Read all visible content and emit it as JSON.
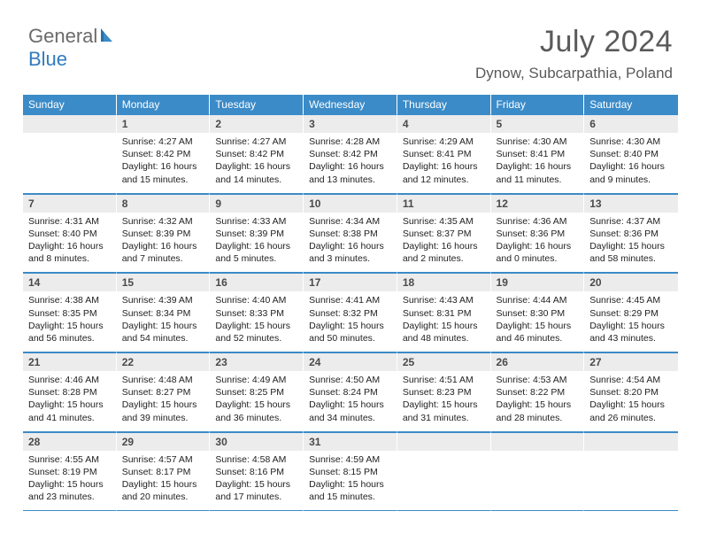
{
  "logo": {
    "t1": "General",
    "t2": "Blue"
  },
  "title": "July 2024",
  "location": "Dynow, Subcarpathia, Poland",
  "colors": {
    "header_blue": "#3b8bc8",
    "num_bg": "#ececec",
    "text_gray": "#5a5a5a"
  },
  "daynames": [
    "Sunday",
    "Monday",
    "Tuesday",
    "Wednesday",
    "Thursday",
    "Friday",
    "Saturday"
  ],
  "weeks": [
    {
      "nums": [
        "",
        "1",
        "2",
        "3",
        "4",
        "5",
        "6"
      ],
      "cells": [
        null,
        {
          "rise": "4:27 AM",
          "set": "8:42 PM",
          "day": "16 hours and 15 minutes."
        },
        {
          "rise": "4:27 AM",
          "set": "8:42 PM",
          "day": "16 hours and 14 minutes."
        },
        {
          "rise": "4:28 AM",
          "set": "8:42 PM",
          "day": "16 hours and 13 minutes."
        },
        {
          "rise": "4:29 AM",
          "set": "8:41 PM",
          "day": "16 hours and 12 minutes."
        },
        {
          "rise": "4:30 AM",
          "set": "8:41 PM",
          "day": "16 hours and 11 minutes."
        },
        {
          "rise": "4:30 AM",
          "set": "8:40 PM",
          "day": "16 hours and 9 minutes."
        }
      ]
    },
    {
      "nums": [
        "7",
        "8",
        "9",
        "10",
        "11",
        "12",
        "13"
      ],
      "cells": [
        {
          "rise": "4:31 AM",
          "set": "8:40 PM",
          "day": "16 hours and 8 minutes."
        },
        {
          "rise": "4:32 AM",
          "set": "8:39 PM",
          "day": "16 hours and 7 minutes."
        },
        {
          "rise": "4:33 AM",
          "set": "8:39 PM",
          "day": "16 hours and 5 minutes."
        },
        {
          "rise": "4:34 AM",
          "set": "8:38 PM",
          "day": "16 hours and 3 minutes."
        },
        {
          "rise": "4:35 AM",
          "set": "8:37 PM",
          "day": "16 hours and 2 minutes."
        },
        {
          "rise": "4:36 AM",
          "set": "8:36 PM",
          "day": "16 hours and 0 minutes."
        },
        {
          "rise": "4:37 AM",
          "set": "8:36 PM",
          "day": "15 hours and 58 minutes."
        }
      ]
    },
    {
      "nums": [
        "14",
        "15",
        "16",
        "17",
        "18",
        "19",
        "20"
      ],
      "cells": [
        {
          "rise": "4:38 AM",
          "set": "8:35 PM",
          "day": "15 hours and 56 minutes."
        },
        {
          "rise": "4:39 AM",
          "set": "8:34 PM",
          "day": "15 hours and 54 minutes."
        },
        {
          "rise": "4:40 AM",
          "set": "8:33 PM",
          "day": "15 hours and 52 minutes."
        },
        {
          "rise": "4:41 AM",
          "set": "8:32 PM",
          "day": "15 hours and 50 minutes."
        },
        {
          "rise": "4:43 AM",
          "set": "8:31 PM",
          "day": "15 hours and 48 minutes."
        },
        {
          "rise": "4:44 AM",
          "set": "8:30 PM",
          "day": "15 hours and 46 minutes."
        },
        {
          "rise": "4:45 AM",
          "set": "8:29 PM",
          "day": "15 hours and 43 minutes."
        }
      ]
    },
    {
      "nums": [
        "21",
        "22",
        "23",
        "24",
        "25",
        "26",
        "27"
      ],
      "cells": [
        {
          "rise": "4:46 AM",
          "set": "8:28 PM",
          "day": "15 hours and 41 minutes."
        },
        {
          "rise": "4:48 AM",
          "set": "8:27 PM",
          "day": "15 hours and 39 minutes."
        },
        {
          "rise": "4:49 AM",
          "set": "8:25 PM",
          "day": "15 hours and 36 minutes."
        },
        {
          "rise": "4:50 AM",
          "set": "8:24 PM",
          "day": "15 hours and 34 minutes."
        },
        {
          "rise": "4:51 AM",
          "set": "8:23 PM",
          "day": "15 hours and 31 minutes."
        },
        {
          "rise": "4:53 AM",
          "set": "8:22 PM",
          "day": "15 hours and 28 minutes."
        },
        {
          "rise": "4:54 AM",
          "set": "8:20 PM",
          "day": "15 hours and 26 minutes."
        }
      ]
    },
    {
      "nums": [
        "28",
        "29",
        "30",
        "31",
        "",
        "",
        ""
      ],
      "cells": [
        {
          "rise": "4:55 AM",
          "set": "8:19 PM",
          "day": "15 hours and 23 minutes."
        },
        {
          "rise": "4:57 AM",
          "set": "8:17 PM",
          "day": "15 hours and 20 minutes."
        },
        {
          "rise": "4:58 AM",
          "set": "8:16 PM",
          "day": "15 hours and 17 minutes."
        },
        {
          "rise": "4:59 AM",
          "set": "8:15 PM",
          "day": "15 hours and 15 minutes."
        },
        null,
        null,
        null
      ]
    }
  ],
  "labels": {
    "sunrise": "Sunrise: ",
    "sunset": "Sunset: ",
    "daylight": "Daylight: "
  }
}
